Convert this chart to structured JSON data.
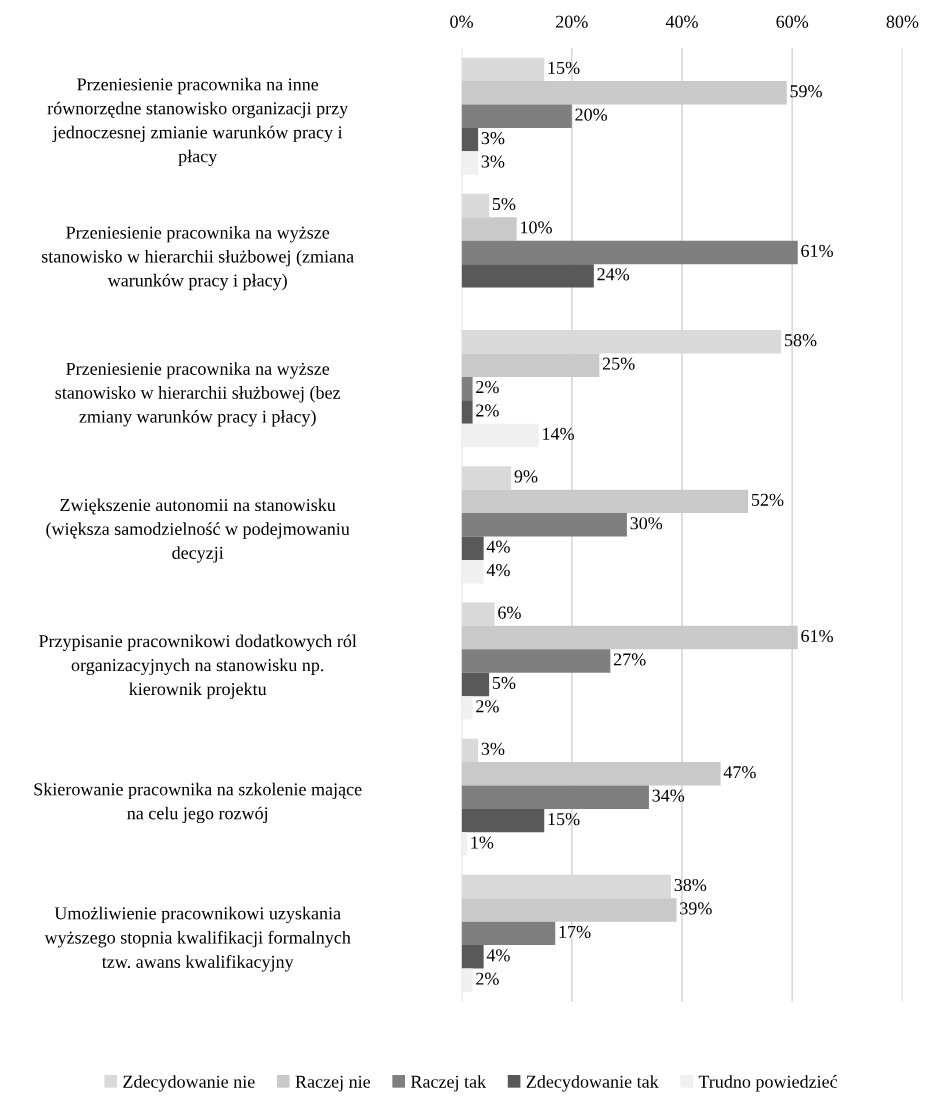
{
  "chart_data": {
    "type": "bar",
    "orientation": "horizontal",
    "categories": [
      "Przeniesienie pracownika na inne równorzędne stanowisko organizacji przy jednoczesnej zmianie warunków pracy i płacy",
      "Przeniesienie pracownika na wyższe stanowisko w hierarchii służbowej (zmiana warunków pracy i płacy)",
      "Przeniesienie pracownika na wyższe stanowisko w hierarchii służbowej (bez zmiany warunków pracy i płacy)",
      "Zwiększenie autonomii na stanowisku (większa samodzielność w podejmowaniu decyzji",
      "Przypisanie pracownikowi dodatkowych ról organizacyjnych na stanowisku np. kierownik projektu",
      "Skierowanie pracownika na szkolenie mające na celu jego rozwój",
      "Umożliwienie pracownikowi uzyskania wyższego stopnia kwalifikacji formalnych tzw. awans kwalifikacyjny"
    ],
    "series": [
      {
        "name": "Zdecydowanie nie",
        "color": "#d9d9d9",
        "values": [
          15,
          5,
          58,
          9,
          6,
          3,
          38
        ],
        "value_labels": [
          "15%",
          "5%",
          "58%",
          "9%",
          "6%",
          "3%",
          "38%"
        ]
      },
      {
        "name": "Raczej nie",
        "color": "#c9c9c9",
        "values": [
          59,
          10,
          25,
          52,
          61,
          47,
          39
        ],
        "value_labels": [
          "59%",
          "10%",
          "25%",
          "52%",
          "61%",
          "47%",
          "39%"
        ]
      },
      {
        "name": "Raczej tak",
        "color": "#7f7f7f",
        "values": [
          20,
          61,
          2,
          30,
          27,
          34,
          17
        ],
        "value_labels": [
          "20%",
          "61%",
          "2%",
          "30%",
          "27%",
          "34%",
          "17%"
        ]
      },
      {
        "name": "Zdecydowanie tak",
        "color": "#595959",
        "values": [
          3,
          24,
          2,
          4,
          5,
          15,
          4
        ],
        "value_labels": [
          "3%",
          "24%",
          "2%",
          "4%",
          "5%",
          "15%",
          "4%"
        ]
      },
      {
        "name": "Trudno powiedzieć",
        "color": "#f0f0f0",
        "values": [
          3,
          null,
          14,
          4,
          2,
          1,
          2
        ],
        "value_labels": [
          "3%",
          null,
          "14%",
          "4%",
          "2%",
          "1%",
          "2%"
        ]
      }
    ],
    "xlim": [
      0,
      80
    ],
    "xticks": [
      {
        "value": 0,
        "label": "0%"
      },
      {
        "value": 20,
        "label": "20%"
      },
      {
        "value": 40,
        "label": "40%"
      },
      {
        "value": 60,
        "label": "60%"
      },
      {
        "value": 80,
        "label": "80%"
      }
    ],
    "grid": "x",
    "legend": "bottom"
  }
}
